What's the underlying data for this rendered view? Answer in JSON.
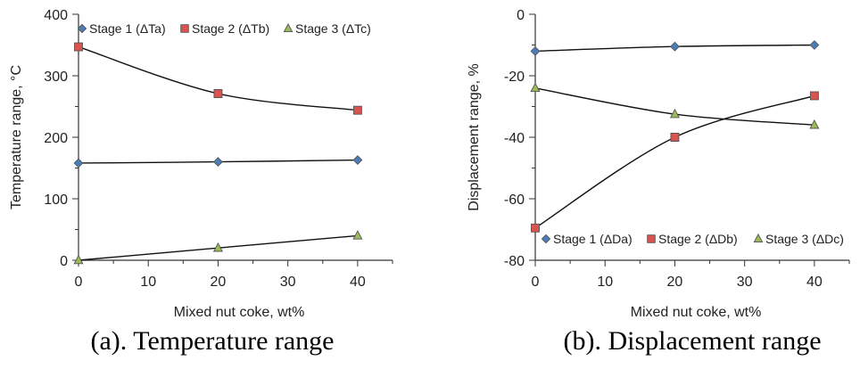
{
  "chart_data": [
    {
      "type": "line",
      "xlabel": "Mixed nut coke, wt%",
      "ylabel": "Temperature range, °C",
      "xlim": [
        0,
        45
      ],
      "ylim": [
        0,
        400
      ],
      "xticks": [
        0,
        10,
        20,
        30,
        40
      ],
      "yticks": [
        0,
        100,
        200,
        300,
        400
      ],
      "x": [
        0,
        20,
        40
      ],
      "legend_position": "top",
      "grid": false,
      "series": [
        {
          "name": "Stage 1 (ΔTa)",
          "values": [
            158,
            160,
            163
          ],
          "color": "#4a7ebb",
          "marker": "diamond"
        },
        {
          "name": "Stage 2 (ΔTb)",
          "values": [
            347,
            271,
            244
          ],
          "color": "#d9534f",
          "marker": "square"
        },
        {
          "name": "Stage 3 (ΔTc)",
          "values": [
            0,
            20,
            40
          ],
          "color": "#9bbb59",
          "marker": "triangle"
        }
      ],
      "caption": "(a). Temperature range"
    },
    {
      "type": "line",
      "xlabel": "Mixed nut coke, wt%",
      "ylabel": "Displacement range, %",
      "xlim": [
        0,
        45
      ],
      "ylim": [
        -80,
        0
      ],
      "xticks": [
        0,
        10,
        20,
        30,
        40
      ],
      "yticks": [
        0,
        -20,
        -40,
        -60,
        -80
      ],
      "x": [
        0,
        20,
        40
      ],
      "legend_position": "bottom",
      "grid": false,
      "series": [
        {
          "name": "Stage 1 (ΔDa)",
          "values": [
            -12,
            -10.5,
            -10
          ],
          "color": "#4a7ebb",
          "marker": "diamond"
        },
        {
          "name": "Stage 2 (ΔDb)",
          "values": [
            -69.5,
            -40,
            -26.5
          ],
          "color": "#d9534f",
          "marker": "square"
        },
        {
          "name": "Stage 3 (ΔDc)",
          "values": [
            -24,
            -32.5,
            -36
          ],
          "color": "#9bbb59",
          "marker": "triangle"
        }
      ],
      "caption": "(b). Displacement range"
    }
  ]
}
